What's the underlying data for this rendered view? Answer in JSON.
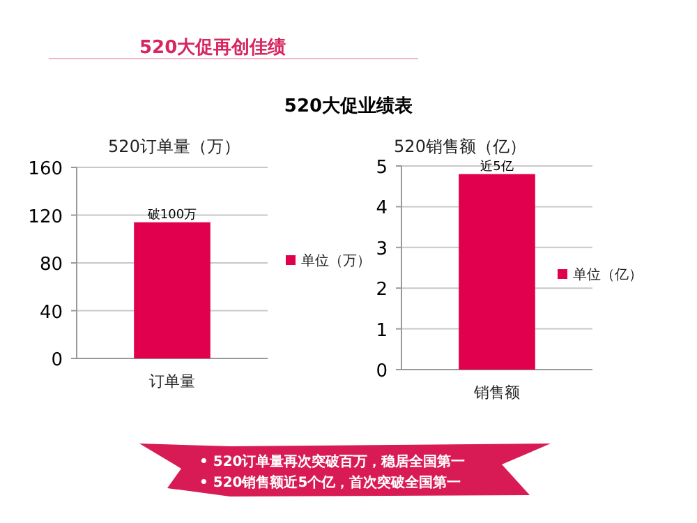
{
  "chart_data": [
    {
      "type": "bar",
      "title": "520订单量（万）",
      "categories": [
        "订单量"
      ],
      "series": [
        {
          "name": "单位（万）",
          "color": "#e0004d",
          "values": [
            114
          ],
          "value_labels": [
            "破100万"
          ]
        }
      ],
      "ylim": [
        0,
        160
      ],
      "yticks": [
        0,
        40,
        80,
        120,
        160
      ],
      "grid": "y",
      "legend": "right",
      "annotations": [
        "520大促再创佳绩",
        "520大促业绩表"
      ]
    },
    {
      "type": "bar",
      "title": "520销售额（亿）",
      "categories": [
        "销售额"
      ],
      "series": [
        {
          "name": "单位（亿）",
          "color": "#e0004d",
          "values": [
            4.8
          ],
          "value_labels": [
            "近5亿"
          ]
        }
      ],
      "ylim": [
        0,
        5
      ],
      "yticks": [
        0,
        1,
        2,
        3,
        4,
        5
      ],
      "grid": "y",
      "legend": "right",
      "annotations": [
        "• 520订单量再次突破百万，稳居全国第一",
        "• 520销售额近5个亿，首次突破全国第一"
      ]
    }
  ]
}
